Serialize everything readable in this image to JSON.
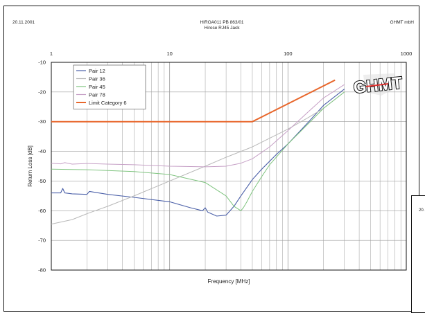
{
  "header": {
    "date": "20.11.2001",
    "report_id": "HIROA011 PB 863/01",
    "product": "Hirose RJ45 Jack",
    "company": "GHMT mbH"
  },
  "logo_text": "GHMT",
  "next_page": {
    "date_fragment": "20."
  },
  "colors": {
    "pair12": "#4a5fa8",
    "pair36": "#b8b8b8",
    "pair45": "#7fc47f",
    "pair78": "#c6a0c6",
    "limit": "#e8672c",
    "grid": "#9a9a9a",
    "frame": "#111111"
  },
  "chart_data": {
    "type": "line",
    "x_scale": "log",
    "xlim": [
      1,
      1000
    ],
    "ylim": [
      -80,
      -10
    ],
    "xlabel": "Frequency [MHz]",
    "ylabel": "Return Loss [dB]",
    "x_ticks": [
      1,
      10,
      100,
      1000
    ],
    "x_tick_labels": [
      "1",
      "10",
      "100",
      "1000"
    ],
    "y_ticks": [
      -10,
      -20,
      -30,
      -40,
      -50,
      -60,
      -70,
      -80
    ],
    "y_tick_labels": [
      "-10",
      "-20",
      "-30",
      "-40",
      "-50",
      "-60",
      "-70",
      "-80"
    ],
    "grid": true,
    "legend_position": "top-left",
    "series": [
      {
        "name": "Pair 12",
        "x": [
          1,
          1.2,
          1.25,
          1.3,
          1.5,
          2,
          2.1,
          3,
          5,
          10,
          15,
          19,
          20,
          21,
          25,
          30,
          35,
          40,
          50,
          60,
          80,
          100,
          150,
          200,
          300
        ],
        "y": [
          -54,
          -54,
          -52.5,
          -54,
          -54.3,
          -54.5,
          -53.5,
          -54.5,
          -55.5,
          -57,
          -59,
          -60,
          -59,
          -60.5,
          -61.8,
          -61.5,
          -58.5,
          -55,
          -49.5,
          -46,
          -41,
          -37.5,
          -30,
          -24.5,
          -19
        ]
      },
      {
        "name": "Pair 36",
        "x": [
          1,
          1.5,
          2,
          3,
          5,
          10,
          20,
          30,
          50,
          100,
          150,
          200,
          300
        ],
        "y": [
          -64.5,
          -63,
          -61,
          -58.5,
          -55,
          -50,
          -45,
          -42,
          -38.5,
          -32.5,
          -28.5,
          -25.5,
          -20
        ]
      },
      {
        "name": "Pair 45",
        "x": [
          1,
          2,
          5,
          10,
          20,
          30,
          35,
          40,
          42,
          45,
          50,
          60,
          70,
          100,
          150,
          200,
          300
        ],
        "y": [
          -46,
          -46.2,
          -46.8,
          -47.8,
          -50.5,
          -55,
          -58.5,
          -60,
          -59,
          -57,
          -53.5,
          -48.5,
          -44.5,
          -37.5,
          -30.5,
          -25.5,
          -20
        ]
      },
      {
        "name": "Pair 78",
        "x": [
          1,
          1.2,
          1.3,
          1.5,
          2,
          3,
          5,
          10,
          20,
          30,
          40,
          50,
          70,
          100,
          150,
          200,
          300
        ],
        "y": [
          -44,
          -44.2,
          -43.8,
          -44.3,
          -44.1,
          -44.3,
          -44.5,
          -45,
          -45.2,
          -45,
          -44,
          -42.5,
          -38.5,
          -33,
          -26.5,
          -22,
          -17.5
        ]
      },
      {
        "name": "Limit Category 6",
        "x": [
          1,
          50,
          250
        ],
        "y": [
          -30,
          -30,
          -16
        ]
      }
    ]
  }
}
